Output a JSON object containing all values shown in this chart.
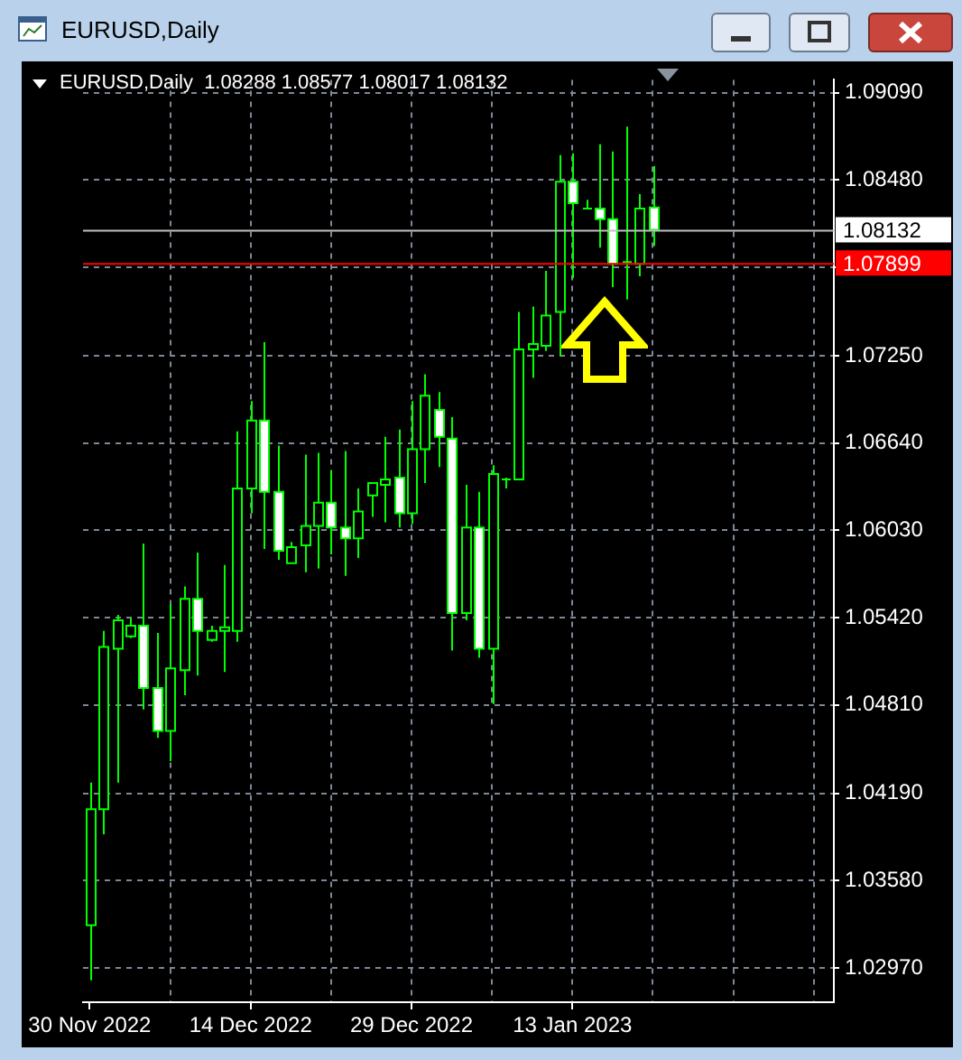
{
  "chart_data": {
    "type": "candlestick",
    "title": "EURUSD,Daily",
    "subtitle": "EURUSD,Daily  1.08288 1.08577 1.08017 1.08132",
    "categories": [
      "30 Nov 2022",
      null,
      null,
      null,
      null,
      null,
      null,
      null,
      null,
      null,
      null,
      null,
      "14 Dec 2022",
      null,
      null,
      null,
      null,
      null,
      null,
      null,
      null,
      null,
      null,
      null,
      "29 Dec 2022",
      null,
      null,
      null,
      null,
      null,
      null,
      null,
      null,
      null,
      null,
      null,
      "13 Jan 2023",
      null,
      null,
      null,
      null,
      null,
      null,
      null,
      null,
      null,
      null,
      null,
      null,
      null,
      null,
      null,
      null,
      null,
      null,
      null
    ],
    "ohlc": [
      [
        1.03269,
        1.04266,
        1.02883,
        1.0408
      ],
      [
        1.0408,
        1.05326,
        1.03905,
        1.05214
      ],
      [
        1.05201,
        1.05438,
        1.04266,
        1.05401
      ],
      [
        1.05289,
        1.05413,
        1.05276,
        1.05363
      ],
      [
        1.05363,
        1.05937,
        1.04777,
        1.04927
      ],
      [
        1.04927,
        1.05313,
        1.04578,
        1.04628
      ],
      [
        1.04628,
        1.05513,
        1.04416,
        1.05064
      ],
      [
        1.05052,
        1.05638,
        1.04877,
        1.0555
      ],
      [
        1.0555,
        1.05874,
        1.05014,
        1.05326
      ],
      [
        1.05264,
        1.05363,
        1.05251,
        1.05326
      ],
      [
        1.05326,
        1.05787,
        1.05039,
        1.05351
      ],
      [
        1.05326,
        1.06722,
        1.05251,
        1.06323
      ],
      [
        1.06323,
        1.06934,
        1.06149,
        1.06797
      ],
      [
        1.06797,
        1.07345,
        1.05899,
        1.06298
      ],
      [
        1.06298,
        1.06622,
        1.05824,
        1.05887
      ],
      [
        1.058,
        1.05949,
        1.058,
        1.05912
      ],
      [
        1.05924,
        1.0656,
        1.05737,
        1.06061
      ],
      [
        1.06061,
        1.06572,
        1.05762,
        1.06223
      ],
      [
        1.06223,
        1.06448,
        1.05862,
        1.06049
      ],
      [
        1.06049,
        1.06585,
        1.05712,
        1.05974
      ],
      [
        1.05974,
        1.06323,
        1.05837,
        1.06161
      ],
      [
        1.06273,
        1.0636,
        1.06124,
        1.0636
      ],
      [
        1.06348,
        1.06684,
        1.06086,
        1.06385
      ],
      [
        1.06398,
        1.06734,
        1.06049,
        1.06149
      ],
      [
        1.06149,
        1.06934,
        1.06074,
        1.06597
      ],
      [
        1.06597,
        1.07121,
        1.0636,
        1.06971
      ],
      [
        1.06871,
        1.06996,
        1.06473,
        1.06684
      ],
      [
        1.06672,
        1.06822,
        1.05189,
        1.05451
      ],
      [
        1.05451,
        1.06348,
        1.05401,
        1.06049
      ],
      [
        1.06049,
        1.06298,
        1.05139,
        1.05201
      ],
      [
        1.05201,
        1.06485,
        1.04815,
        1.06423
      ],
      [
        1.06385,
        1.06398,
        1.06323,
        1.06385
      ],
      [
        1.06385,
        1.07557,
        1.06385,
        1.07295
      ],
      [
        1.07295,
        1.07594,
        1.07096,
        1.07333
      ],
      [
        1.0732,
        1.07844,
        1.07283,
        1.07532
      ],
      [
        1.07557,
        1.08654,
        1.07245,
        1.08467
      ],
      [
        1.08467,
        1.08666,
        1.07794,
        1.08317
      ],
      [
        1.0828,
        1.08342,
        1.0828,
        1.0828
      ],
      [
        1.0828,
        1.08729,
        1.08006,
        1.08205
      ],
      [
        1.08205,
        1.08679,
        1.07731,
        1.07893
      ],
      [
        1.07906,
        1.08853,
        1.07644,
        1.07906
      ],
      [
        1.07893,
        1.0838,
        1.07806,
        1.0828
      ],
      [
        1.08288,
        1.08577,
        1.08017,
        1.08132
      ],
      null,
      null,
      null,
      null,
      null,
      null,
      null,
      null,
      null,
      null,
      null,
      null,
      null
    ],
    "color": "#00ff00",
    "colors": [
      "#000000",
      "#000000",
      "#000000",
      "#000000",
      "#ffffff",
      "#ffffff",
      "#000000",
      "#000000",
      "#ffffff",
      "#000000",
      "#000000",
      "#000000",
      "#000000",
      "#ffffff",
      "#ffffff",
      "#000000",
      "#000000",
      "#000000",
      "#ffffff",
      "#ffffff",
      "#000000",
      "#000000",
      "#000000",
      "#ffffff",
      "#000000",
      "#000000",
      "#ffffff",
      "#ffffff",
      "#000000",
      "#ffffff",
      "#000000",
      "#00ff00",
      "#000000",
      "#000000",
      "#000000",
      "#000000",
      "#ffffff",
      "#00ff00",
      "#ffffff",
      "#ffffff",
      "#00ff00",
      "#000000",
      "#ffffff",
      null,
      null,
      null,
      null,
      null,
      null,
      null,
      null,
      null,
      null,
      null,
      null,
      null
    ],
    "ylim": [
      1.0273,
      1.0918
    ],
    "yticks": [
      {
        "value": 1.0297,
        "label": "1.02970"
      },
      {
        "value": 1.0358,
        "label": "1.03580"
      },
      {
        "value": 1.0419,
        "label": "1.04190"
      },
      {
        "value": 1.0481,
        "label": "1.04810"
      },
      {
        "value": 1.0542,
        "label": "1.05420"
      },
      {
        "value": 1.0603,
        "label": "1.06030"
      },
      {
        "value": 1.0664,
        "label": "1.06640"
      },
      {
        "value": 1.0725,
        "label": "1.07250"
      },
      {
        "value": 1.0787,
        "label": null
      },
      {
        "value": 1.0848,
        "label": "1.08480"
      },
      {
        "value": 1.0909,
        "label": "1.09090"
      }
    ],
    "grid": true,
    "ref_lines": [
      {
        "axis": "y",
        "value": 1.08132,
        "label": "1.08132",
        "color": "#c0c0c0"
      },
      {
        "axis": "y",
        "value": 1.07899,
        "label": "1.07899",
        "color": "#ff0000"
      }
    ]
  }
}
